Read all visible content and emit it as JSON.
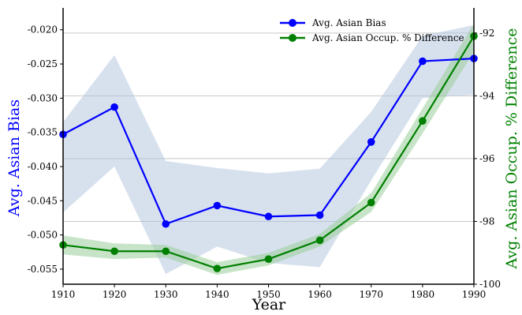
{
  "chart_data": {
    "type": "line",
    "title": "",
    "xlabel": "Year",
    "ylabel_left": "Avg. Asian Bias",
    "ylabel_right": "Avg. Asian Occup. % Difference",
    "x": [
      1910,
      1920,
      1930,
      1940,
      1950,
      1960,
      1970,
      1980,
      1990
    ],
    "x_ticks": [
      "1910",
      "1920",
      "1930",
      "1940",
      "1950",
      "1960",
      "1970",
      "1980",
      "1990"
    ],
    "xlim": [
      1910,
      1990
    ],
    "ylim_left": [
      -0.0572,
      -0.0168
    ],
    "ylim_right": [
      -100,
      -91.2
    ],
    "left_ticks": [
      "-0.020",
      "-0.025",
      "-0.030",
      "-0.035",
      "-0.040",
      "-0.045",
      "-0.050",
      "-0.055"
    ],
    "left_tick_values": [
      -0.02,
      -0.025,
      -0.03,
      -0.035,
      -0.04,
      -0.045,
      -0.05,
      -0.055
    ],
    "right_ticks": [
      "-92",
      "-94",
      "-96",
      "-98",
      "-100"
    ],
    "right_tick_values": [
      -92,
      -94,
      -96,
      -98,
      -100
    ],
    "grid": "horizontal",
    "legend_position": "top-right",
    "series": [
      {
        "name": "Avg. Asian Bias",
        "axis": "left",
        "color": "#0000ff",
        "band_color": "#b0c4de",
        "values": [
          -0.0353,
          -0.0313,
          -0.0484,
          -0.0457,
          -0.0473,
          -0.0471,
          -0.0364,
          -0.0246,
          -0.0242
        ],
        "lower": [
          -0.0467,
          -0.04,
          -0.0557,
          -0.0517,
          -0.0541,
          -0.0547,
          -0.042,
          -0.03,
          -0.0295
        ],
        "upper": [
          -0.0335,
          -0.0237,
          -0.0392,
          -0.0402,
          -0.041,
          -0.0403,
          -0.032,
          -0.0209,
          -0.0193
        ]
      },
      {
        "name": "Avg. Asian Occup. % Difference",
        "axis": "right",
        "color": "#008000",
        "band_color": "#9acd9a",
        "values": [
          -98.75,
          -98.95,
          -98.95,
          -99.5,
          -99.2,
          -98.6,
          -97.4,
          -94.8,
          -92.1
        ],
        "lower": [
          -99.05,
          -99.2,
          -99.15,
          -99.7,
          -99.4,
          -98.8,
          -97.7,
          -95.2,
          -92.6
        ],
        "upper": [
          -98.45,
          -98.7,
          -98.75,
          -99.3,
          -99.0,
          -98.4,
          -97.1,
          -94.4,
          -91.7
        ]
      }
    ]
  }
}
